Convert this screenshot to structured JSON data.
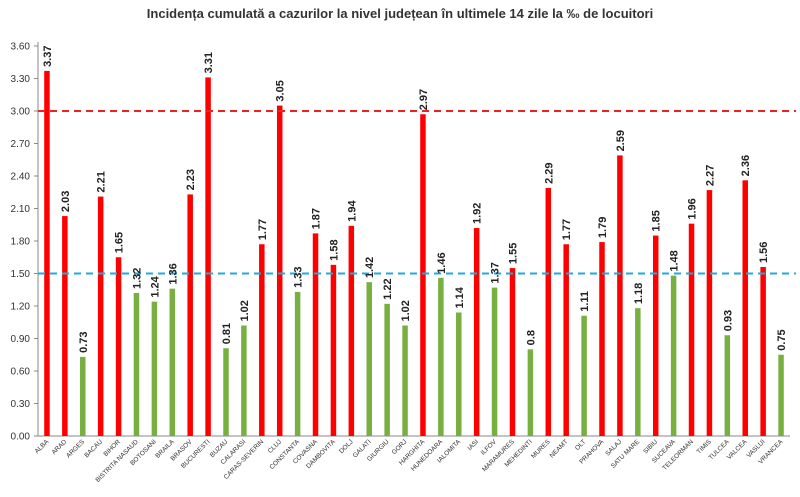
{
  "chart_data": {
    "type": "bar",
    "title": "Incidența cumulată a cazurilor la nivel județean în ultimele 14 zile la ‰ de locuitori",
    "xlabel": "",
    "ylabel": "",
    "ylim": [
      0,
      3.6
    ],
    "yticks": [
      "0.00",
      "0.30",
      "0.60",
      "0.90",
      "1.20",
      "1.50",
      "1.80",
      "2.10",
      "2.40",
      "2.70",
      "3.00",
      "3.30",
      "3.60"
    ],
    "categories": [
      "ALBA",
      "ARAD",
      "ARGES",
      "BACAU",
      "BIHOR",
      "BISTRITA NASAUD",
      "BOTOSANI",
      "BRAILA",
      "BRASOV",
      "BUCURESTI",
      "BUZAU",
      "CALARASI",
      "CARAS-SEVERIN",
      "CLUJ",
      "CONSTANTA",
      "COVASNA",
      "DAMBOVITA",
      "DOLJ",
      "GALATI",
      "GIURGIU",
      "GORJ",
      "HARGHITA",
      "HUNEDOARA",
      "IALOMITA",
      "IASI",
      "ILFOV",
      "MARAMURES",
      "MEHEDINTI",
      "MURES",
      "NEAMT",
      "OLT",
      "PRAHOVA",
      "SALAJ",
      "SATU MARE",
      "SIBIU",
      "SUCEAVA",
      "TELEORMAN",
      "TIMIS",
      "TULCEA",
      "VALCEA",
      "VASLUI",
      "VRANCEA"
    ],
    "values": [
      3.37,
      2.03,
      0.73,
      2.21,
      1.65,
      1.32,
      1.24,
      1.36,
      2.23,
      3.31,
      0.81,
      1.02,
      1.77,
      3.05,
      1.33,
      1.87,
      1.58,
      1.94,
      1.42,
      1.22,
      1.02,
      2.97,
      1.46,
      1.14,
      1.92,
      1.37,
      1.55,
      0.8,
      2.29,
      1.77,
      1.11,
      1.79,
      2.59,
      1.18,
      1.85,
      1.48,
      1.96,
      2.27,
      0.93,
      2.36,
      1.56,
      0.75
    ],
    "value_labels": [
      "3.37",
      "2.03",
      "0.73",
      "2.21",
      "1.65",
      "1.32",
      "1.24",
      "1.36",
      "2.23",
      "3.31",
      "0.81",
      "1.02",
      "1.77",
      "3.05",
      "1.33",
      "1.87",
      "1.58",
      "1.94",
      "1.42",
      "1.22",
      "1.02",
      "2.97",
      "1.46",
      "1.14",
      "1.92",
      "1.37",
      "1.55",
      "0.8",
      "2.29",
      "1.77",
      "1.11",
      "1.79",
      "2.59",
      "1.18",
      "1.85",
      "1.48",
      "1.96",
      "2.27",
      "0.93",
      "2.36",
      "1.56",
      "0.75"
    ],
    "reference_lines": [
      {
        "value": 3.0,
        "style": "dashed",
        "color": "#ee2222"
      },
      {
        "value": 1.5,
        "style": "dashed",
        "color": "#22aadd"
      }
    ],
    "colors": {
      "above_threshold": "#ff0000",
      "below_threshold": "#77b041",
      "axis": "#888888",
      "text": "#333333"
    },
    "color_rule": "bars with value > 1.5 are red, bars with value <= 1.5 are green",
    "grid": false,
    "legend": "none"
  }
}
